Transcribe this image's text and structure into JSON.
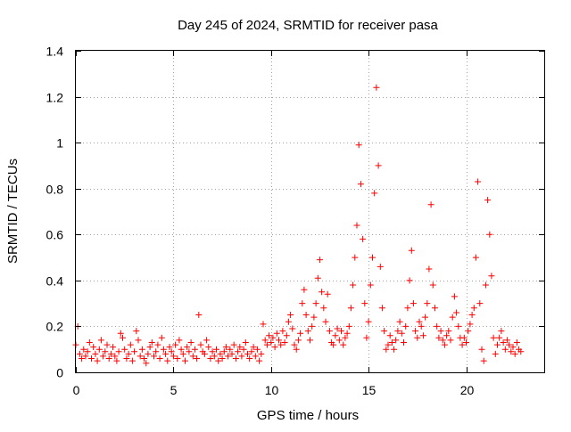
{
  "chart_data": {
    "type": "scatter",
    "title": "Day 245 of 2024, SRMTID for receiver pasa",
    "xlabel": "GPS time / hours",
    "ylabel": "SRMTID / TECUs",
    "xlim": [
      0,
      24
    ],
    "ylim": [
      0,
      1.4
    ],
    "x_ticks": [
      0,
      5,
      10,
      15,
      20
    ],
    "x_tick_labels": [
      "0",
      "5",
      "10",
      "15",
      "20"
    ],
    "y_ticks": [
      0,
      0.2,
      0.4,
      0.6,
      0.8,
      1.0,
      1.2,
      1.4
    ],
    "y_tick_labels": [
      "0",
      "0.2",
      "0.4",
      "0.6",
      "0.8",
      "1",
      "1.2",
      "1.4"
    ],
    "grid": true,
    "marker": "+",
    "marker_color": "#ff0000",
    "series": [
      {
        "name": "pasa",
        "points": [
          [
            0.0,
            0.12
          ],
          [
            0.1,
            0.2
          ],
          [
            0.2,
            0.08
          ],
          [
            0.3,
            0.06
          ],
          [
            0.4,
            0.1
          ],
          [
            0.5,
            0.07
          ],
          [
            0.6,
            0.09
          ],
          [
            0.7,
            0.13
          ],
          [
            0.8,
            0.06
          ],
          [
            0.9,
            0.11
          ],
          [
            1.0,
            0.08
          ],
          [
            1.1,
            0.05
          ],
          [
            1.2,
            0.1
          ],
          [
            1.3,
            0.14
          ],
          [
            1.4,
            0.07
          ],
          [
            1.5,
            0.09
          ],
          [
            1.6,
            0.12
          ],
          [
            1.7,
            0.06
          ],
          [
            1.8,
            0.08
          ],
          [
            1.9,
            0.11
          ],
          [
            2.0,
            0.07
          ],
          [
            2.1,
            0.05
          ],
          [
            2.2,
            0.09
          ],
          [
            2.3,
            0.17
          ],
          [
            2.4,
            0.15
          ],
          [
            2.5,
            0.1
          ],
          [
            2.6,
            0.06
          ],
          [
            2.7,
            0.08
          ],
          [
            2.8,
            0.12
          ],
          [
            2.9,
            0.05
          ],
          [
            3.0,
            0.09
          ],
          [
            3.1,
            0.18
          ],
          [
            3.2,
            0.14
          ],
          [
            3.3,
            0.07
          ],
          [
            3.4,
            0.1
          ],
          [
            3.5,
            0.06
          ],
          [
            3.6,
            0.04
          ],
          [
            3.7,
            0.08
          ],
          [
            3.8,
            0.11
          ],
          [
            3.9,
            0.13
          ],
          [
            4.0,
            0.07
          ],
          [
            4.1,
            0.09
          ],
          [
            4.2,
            0.12
          ],
          [
            4.3,
            0.06
          ],
          [
            4.4,
            0.15
          ],
          [
            4.5,
            0.1
          ],
          [
            4.6,
            0.08
          ],
          [
            4.7,
            0.05
          ],
          [
            4.8,
            0.11
          ],
          [
            4.9,
            0.09
          ],
          [
            5.0,
            0.07
          ],
          [
            5.1,
            0.12
          ],
          [
            5.2,
            0.06
          ],
          [
            5.3,
            0.14
          ],
          [
            5.4,
            0.1
          ],
          [
            5.5,
            0.08
          ],
          [
            5.6,
            0.05
          ],
          [
            5.7,
            0.11
          ],
          [
            5.8,
            0.09
          ],
          [
            5.9,
            0.13
          ],
          [
            6.0,
            0.07
          ],
          [
            6.1,
            0.1
          ],
          [
            6.2,
            0.06
          ],
          [
            6.3,
            0.25
          ],
          [
            6.4,
            0.12
          ],
          [
            6.5,
            0.09
          ],
          [
            6.6,
            0.08
          ],
          [
            6.7,
            0.14
          ],
          [
            6.8,
            0.11
          ],
          [
            6.9,
            0.06
          ],
          [
            7.0,
            0.09
          ],
          [
            7.1,
            0.07
          ],
          [
            7.2,
            0.1
          ],
          [
            7.3,
            0.05
          ],
          [
            7.4,
            0.08
          ],
          [
            7.5,
            0.06
          ],
          [
            7.6,
            0.09
          ],
          [
            7.7,
            0.11
          ],
          [
            7.8,
            0.07
          ],
          [
            7.9,
            0.1
          ],
          [
            8.0,
            0.08
          ],
          [
            8.1,
            0.12
          ],
          [
            8.2,
            0.06
          ],
          [
            8.3,
            0.09
          ],
          [
            8.4,
            0.11
          ],
          [
            8.5,
            0.07
          ],
          [
            8.6,
            0.1
          ],
          [
            8.7,
            0.13
          ],
          [
            8.8,
            0.08
          ],
          [
            8.9,
            0.06
          ],
          [
            9.0,
            0.09
          ],
          [
            9.1,
            0.11
          ],
          [
            9.2,
            0.07
          ],
          [
            9.3,
            0.1
          ],
          [
            9.4,
            0.05
          ],
          [
            9.5,
            0.08
          ],
          [
            9.6,
            0.21
          ],
          [
            9.7,
            0.14
          ],
          [
            9.8,
            0.12
          ],
          [
            9.9,
            0.16
          ],
          [
            10.0,
            0.13
          ],
          [
            10.1,
            0.15
          ],
          [
            10.2,
            0.11
          ],
          [
            10.3,
            0.17
          ],
          [
            10.4,
            0.14
          ],
          [
            10.5,
            0.12
          ],
          [
            10.6,
            0.18
          ],
          [
            10.7,
            0.13
          ],
          [
            10.8,
            0.16
          ],
          [
            10.9,
            0.22
          ],
          [
            11.0,
            0.25
          ],
          [
            11.1,
            0.19
          ],
          [
            11.2,
            0.12
          ],
          [
            11.3,
            0.1
          ],
          [
            11.4,
            0.14
          ],
          [
            11.5,
            0.17
          ],
          [
            11.6,
            0.3
          ],
          [
            11.7,
            0.36
          ],
          [
            11.8,
            0.25
          ],
          [
            11.9,
            0.18
          ],
          [
            12.0,
            0.14
          ],
          [
            12.1,
            0.2
          ],
          [
            12.2,
            0.24
          ],
          [
            12.3,
            0.3
          ],
          [
            12.4,
            0.41
          ],
          [
            12.5,
            0.49
          ],
          [
            12.6,
            0.35
          ],
          [
            12.7,
            0.28
          ],
          [
            12.8,
            0.22
          ],
          [
            12.9,
            0.34
          ],
          [
            13.0,
            0.18
          ],
          [
            13.1,
            0.13
          ],
          [
            13.2,
            0.12
          ],
          [
            13.3,
            0.16
          ],
          [
            13.4,
            0.19
          ],
          [
            13.5,
            0.14
          ],
          [
            13.6,
            0.18
          ],
          [
            13.7,
            0.12
          ],
          [
            13.8,
            0.15
          ],
          [
            13.9,
            0.17
          ],
          [
            14.0,
            0.2
          ],
          [
            14.1,
            0.28
          ],
          [
            14.2,
            0.38
          ],
          [
            14.3,
            0.5
          ],
          [
            14.4,
            0.64
          ],
          [
            14.5,
            0.99
          ],
          [
            14.6,
            0.82
          ],
          [
            14.7,
            0.58
          ],
          [
            14.8,
            0.3
          ],
          [
            14.9,
            0.15
          ],
          [
            15.0,
            0.22
          ],
          [
            15.1,
            0.38
          ],
          [
            15.2,
            0.5
          ],
          [
            15.3,
            0.78
          ],
          [
            15.4,
            1.24
          ],
          [
            15.5,
            0.9
          ],
          [
            15.6,
            0.46
          ],
          [
            15.7,
            0.28
          ],
          [
            15.8,
            0.18
          ],
          [
            15.9,
            0.1
          ],
          [
            16.0,
            0.12
          ],
          [
            16.1,
            0.16
          ],
          [
            16.2,
            0.13
          ],
          [
            16.3,
            0.1
          ],
          [
            16.4,
            0.14
          ],
          [
            16.5,
            0.18
          ],
          [
            16.6,
            0.22
          ],
          [
            16.7,
            0.17
          ],
          [
            16.8,
            0.13
          ],
          [
            16.9,
            0.2
          ],
          [
            17.0,
            0.28
          ],
          [
            17.1,
            0.4
          ],
          [
            17.2,
            0.53
          ],
          [
            17.3,
            0.3
          ],
          [
            17.4,
            0.18
          ],
          [
            17.5,
            0.15
          ],
          [
            17.6,
            0.22
          ],
          [
            17.7,
            0.2
          ],
          [
            17.8,
            0.16
          ],
          [
            17.9,
            0.24
          ],
          [
            18.0,
            0.3
          ],
          [
            18.1,
            0.45
          ],
          [
            18.2,
            0.73
          ],
          [
            18.3,
            0.38
          ],
          [
            18.4,
            0.28
          ],
          [
            18.5,
            0.2
          ],
          [
            18.6,
            0.15
          ],
          [
            18.7,
            0.18
          ],
          [
            18.8,
            0.14
          ],
          [
            18.9,
            0.12
          ],
          [
            19.0,
            0.16
          ],
          [
            19.1,
            0.18
          ],
          [
            19.2,
            0.14
          ],
          [
            19.3,
            0.24
          ],
          [
            19.4,
            0.33
          ],
          [
            19.5,
            0.26
          ],
          [
            19.6,
            0.2
          ],
          [
            19.7,
            0.15
          ],
          [
            19.8,
            0.12
          ],
          [
            19.9,
            0.15
          ],
          [
            20.0,
            0.13
          ],
          [
            20.1,
            0.18
          ],
          [
            20.2,
            0.21
          ],
          [
            20.3,
            0.25
          ],
          [
            20.4,
            0.28
          ],
          [
            20.5,
            0.5
          ],
          [
            20.6,
            0.83
          ],
          [
            20.7,
            0.3
          ],
          [
            20.8,
            0.1
          ],
          [
            20.9,
            0.05
          ],
          [
            21.0,
            0.38
          ],
          [
            21.1,
            0.75
          ],
          [
            21.2,
            0.6
          ],
          [
            21.3,
            0.42
          ],
          [
            21.4,
            0.15
          ],
          [
            21.5,
            0.08
          ],
          [
            21.6,
            0.12
          ],
          [
            21.7,
            0.15
          ],
          [
            21.8,
            0.18
          ],
          [
            21.9,
            0.13
          ],
          [
            22.0,
            0.1
          ],
          [
            22.1,
            0.14
          ],
          [
            22.2,
            0.12
          ],
          [
            22.3,
            0.09
          ],
          [
            22.4,
            0.11
          ],
          [
            22.5,
            0.08
          ],
          [
            22.6,
            0.13
          ],
          [
            22.7,
            0.1
          ],
          [
            22.8,
            0.09
          ]
        ]
      }
    ]
  }
}
